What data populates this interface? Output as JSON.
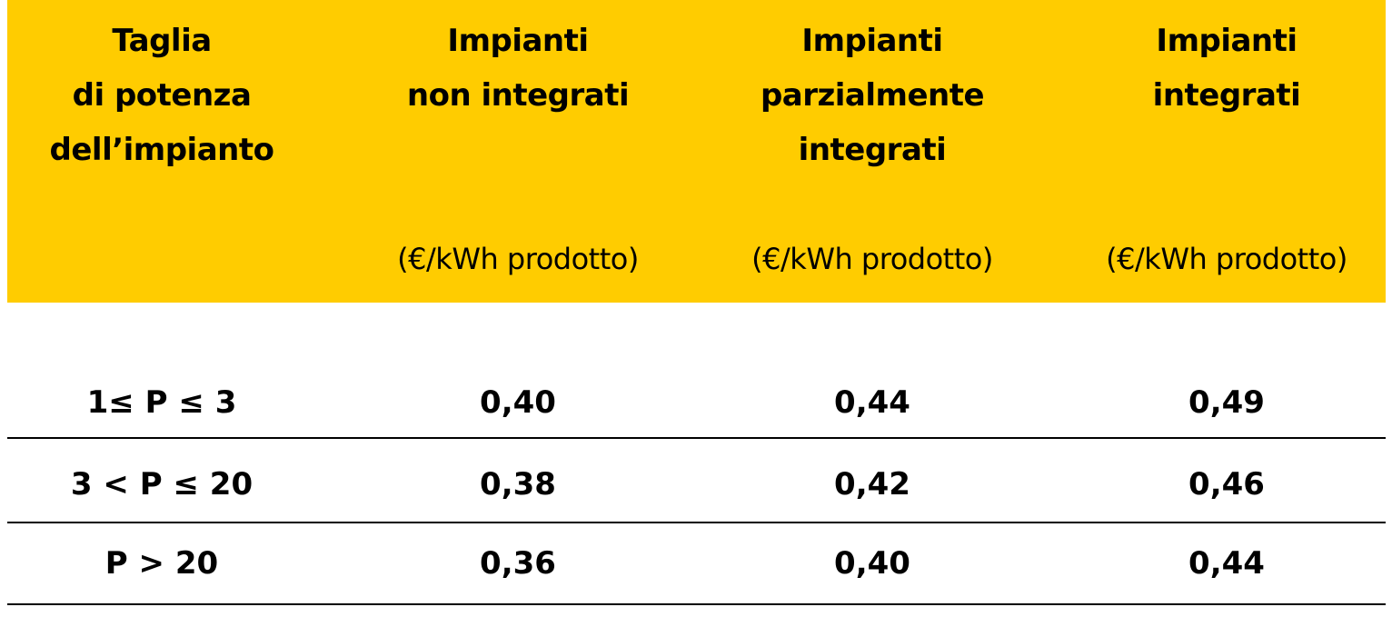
{
  "table": {
    "header": [
      {
        "lines": [
          "Taglia",
          "di potenza",
          "dell’impianto"
        ]
      },
      {
        "lines": [
          "Impianti",
          "non integrati"
        ],
        "unit": "(€/kWh prodotto)"
      },
      {
        "lines": [
          "Impianti",
          "parzialmente",
          "integrati"
        ],
        "unit": "(€/kWh prodotto)"
      },
      {
        "lines": [
          "Impianti",
          "integrati"
        ],
        "unit": "(€/kWh prodotto)"
      }
    ],
    "rows": [
      [
        "1≤ P ≤ 3",
        "0,40",
        "0,44",
        "0,49"
      ],
      [
        "3 < P ≤ 20",
        "0,38",
        "0,42",
        "0,46"
      ],
      [
        "P > 20",
        "0,36",
        "0,40",
        "0,44"
      ]
    ]
  }
}
